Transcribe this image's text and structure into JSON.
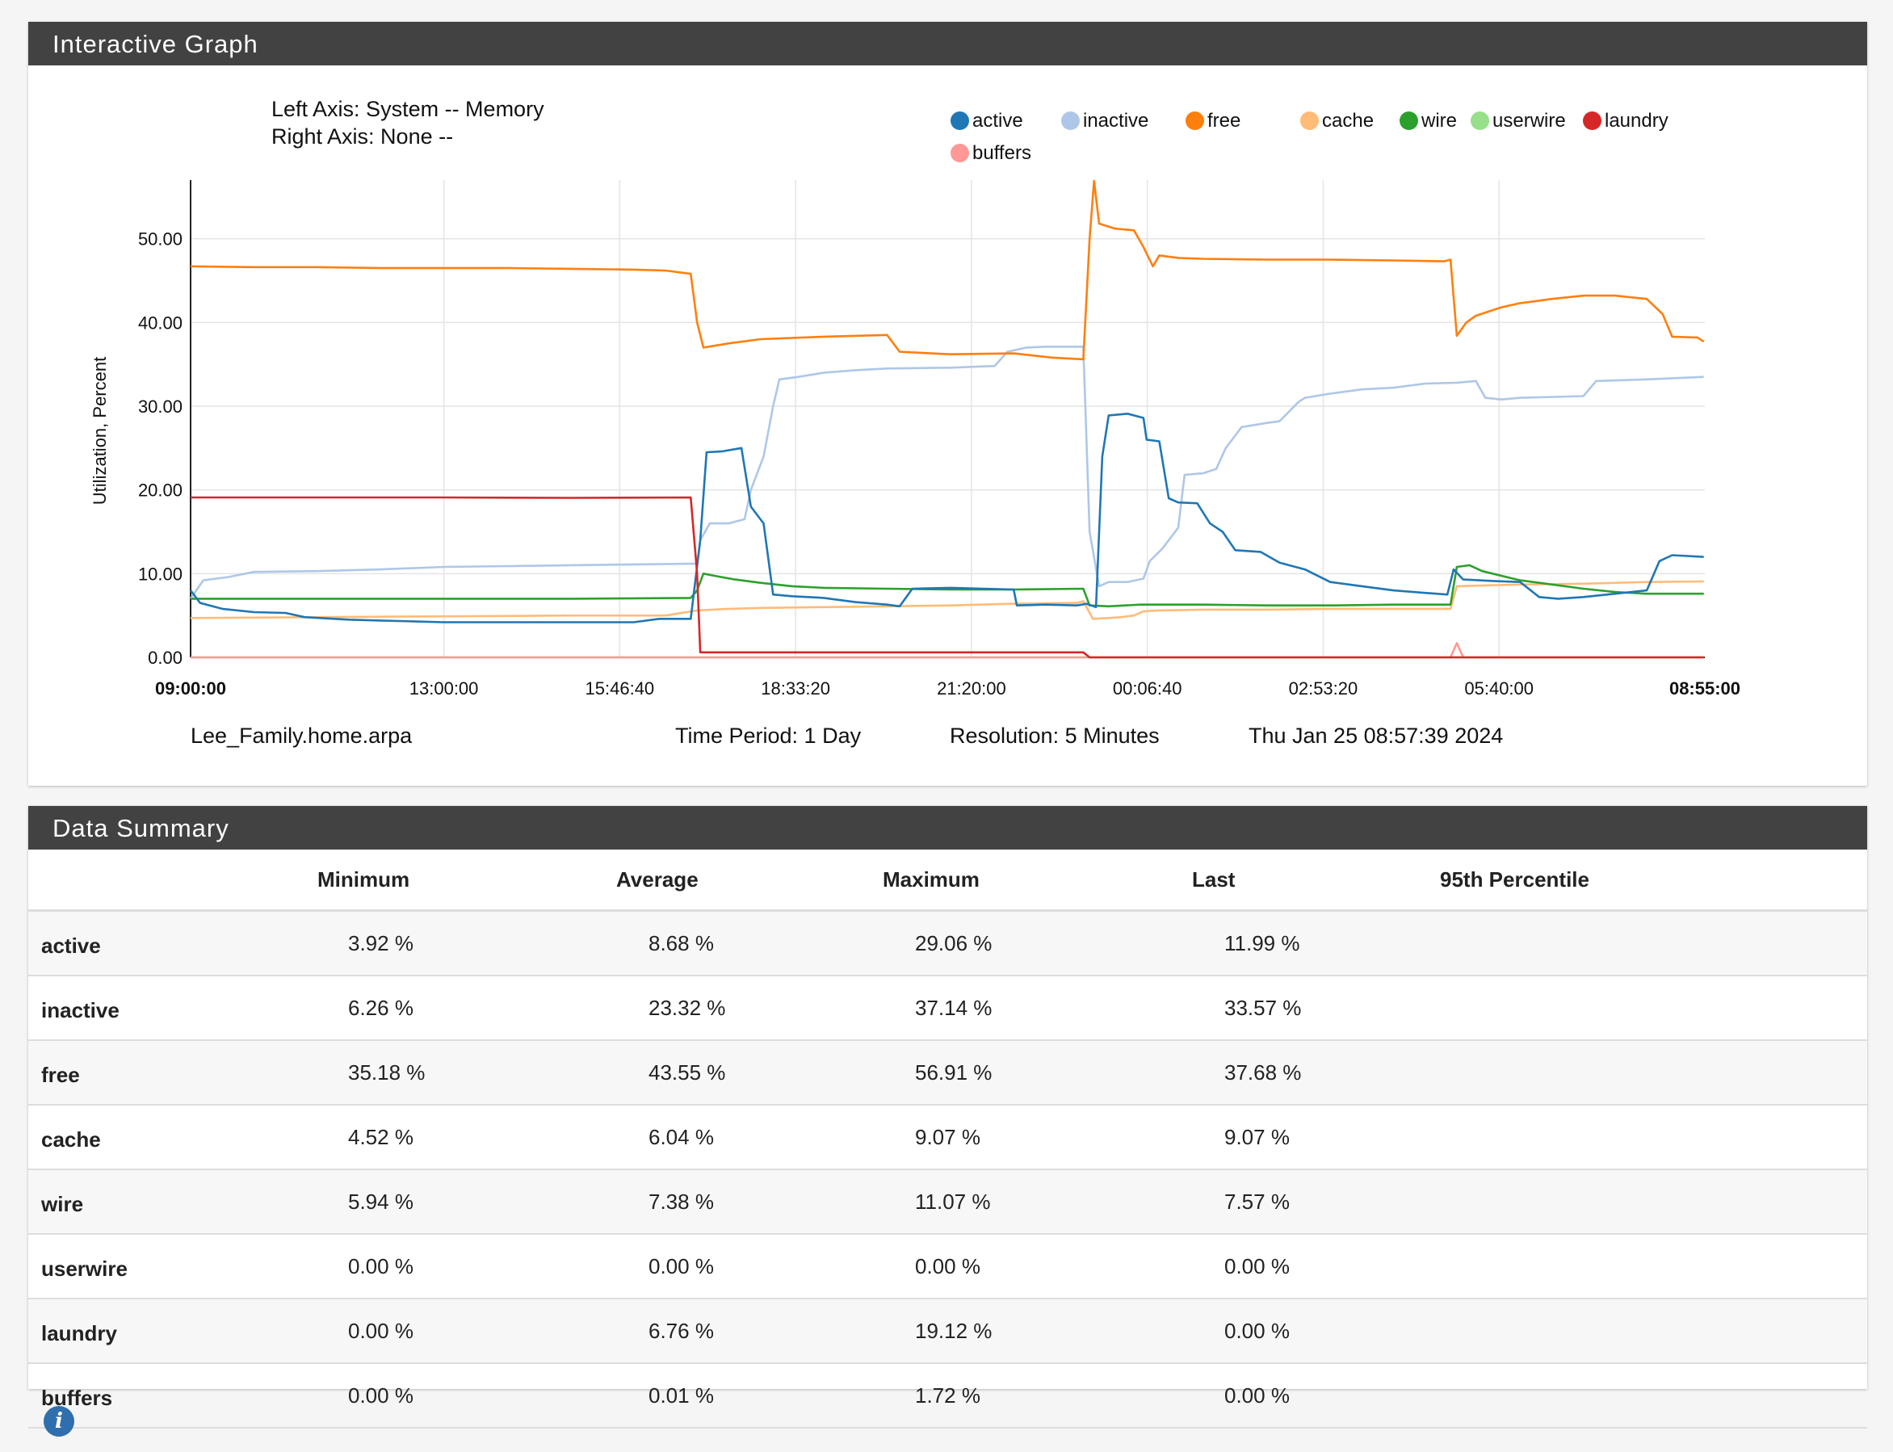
{
  "graph_panel": {
    "title": "Interactive Graph"
  },
  "summary_panel": {
    "title": "Data Summary"
  },
  "axis_info": {
    "left": "Left Axis: System -- Memory",
    "right": "Right Axis: None --"
  },
  "footer": {
    "host": "Lee_Family.home.arpa",
    "period": "Time Period: 1 Day",
    "resolution": "Resolution: 5 Minutes",
    "timestamp": "Thu Jan 25 08:57:39 2024"
  },
  "summary": {
    "headers": [
      "",
      "Minimum",
      "Average",
      "Maximum",
      "Last",
      "95th Percentile"
    ],
    "rows": [
      {
        "name": "active",
        "min": "3.92 %",
        "avg": "8.68 %",
        "max": "29.06 %",
        "last": "11.99 %",
        "p95": ""
      },
      {
        "name": "inactive",
        "min": "6.26 %",
        "avg": "23.32 %",
        "max": "37.14 %",
        "last": "33.57 %",
        "p95": ""
      },
      {
        "name": "free",
        "min": "35.18 %",
        "avg": "43.55 %",
        "max": "56.91 %",
        "last": "37.68 %",
        "p95": ""
      },
      {
        "name": "cache",
        "min": "4.52 %",
        "avg": "6.04 %",
        "max": "9.07 %",
        "last": "9.07 %",
        "p95": ""
      },
      {
        "name": "wire",
        "min": "5.94 %",
        "avg": "7.38 %",
        "max": "11.07 %",
        "last": "7.57 %",
        "p95": ""
      },
      {
        "name": "userwire",
        "min": "0.00 %",
        "avg": "0.00 %",
        "max": "0.00 %",
        "last": "0.00 %",
        "p95": ""
      },
      {
        "name": "laundry",
        "min": "0.00 %",
        "avg": "6.76 %",
        "max": "19.12 %",
        "last": "0.00 %",
        "p95": ""
      },
      {
        "name": "buffers",
        "min": "0.00 %",
        "avg": "0.01 %",
        "max": "1.72 %",
        "last": "0.00 %",
        "p95": ""
      }
    ]
  },
  "icons": {
    "info": "info-icon"
  },
  "chart_data": {
    "type": "line",
    "ylabel": "Utilization, Percent",
    "ylim": [
      0,
      57
    ],
    "grid": true,
    "legend_position": "top-right",
    "yticks": [
      "0.00",
      "10.00",
      "20.00",
      "30.00",
      "40.00",
      "50.00"
    ],
    "xticks": [
      "09:00:00",
      "13:00:00",
      "15:46:40",
      "18:33:20",
      "21:20:00",
      "00:06:40",
      "02:53:20",
      "05:40:00",
      "08:55:00"
    ],
    "x_hours": [
      0,
      4,
      6.7778,
      9.5556,
      12.3333,
      15.1111,
      17.8889,
      20.6667,
      23.9167
    ],
    "series": [
      {
        "name": "active",
        "color": "#1f77b4",
        "points": [
          [
            0,
            8
          ],
          [
            0.15,
            6.5
          ],
          [
            0.5,
            5.8
          ],
          [
            1,
            5.4
          ],
          [
            1.5,
            5.3
          ],
          [
            1.8,
            4.8
          ],
          [
            2.5,
            4.5
          ],
          [
            3,
            4.4
          ],
          [
            3.5,
            4.3
          ],
          [
            4,
            4.2
          ],
          [
            5,
            4.2
          ],
          [
            6,
            4.2
          ],
          [
            7,
            4.2
          ],
          [
            7.4,
            4.6
          ],
          [
            7.9,
            4.6
          ],
          [
            8.05,
            14
          ],
          [
            8.15,
            24.5
          ],
          [
            8.4,
            24.6
          ],
          [
            8.7,
            25
          ],
          [
            8.85,
            18
          ],
          [
            9.05,
            16
          ],
          [
            9.2,
            7.5
          ],
          [
            9.5,
            7.3
          ],
          [
            10,
            7.1
          ],
          [
            10.5,
            6.6
          ],
          [
            11,
            6.3
          ],
          [
            11.2,
            6.1
          ],
          [
            11.4,
            8.2
          ],
          [
            12,
            8.3
          ],
          [
            13,
            8.1
          ],
          [
            13.05,
            6.2
          ],
          [
            13.5,
            6.3
          ],
          [
            14,
            6.2
          ],
          [
            14.15,
            6.4
          ],
          [
            14.3,
            6
          ],
          [
            14.4,
            24
          ],
          [
            14.5,
            28.9
          ],
          [
            14.8,
            29.1
          ],
          [
            15.05,
            28.6
          ],
          [
            15.1,
            26
          ],
          [
            15.3,
            25.8
          ],
          [
            15.45,
            19
          ],
          [
            15.6,
            18.5
          ],
          [
            15.9,
            18.4
          ],
          [
            16.1,
            16
          ],
          [
            16.3,
            15
          ],
          [
            16.5,
            12.8
          ],
          [
            16.9,
            12.6
          ],
          [
            17.2,
            11.3
          ],
          [
            17.6,
            10.5
          ],
          [
            18,
            9
          ],
          [
            18.5,
            8.5
          ],
          [
            19,
            8
          ],
          [
            19.5,
            7.7
          ],
          [
            19.85,
            7.5
          ],
          [
            19.95,
            10.5
          ],
          [
            20.1,
            9.3
          ],
          [
            20.6,
            9.1
          ],
          [
            21,
            9
          ],
          [
            21.3,
            7.2
          ],
          [
            21.6,
            7
          ],
          [
            22,
            7.2
          ],
          [
            22.5,
            7.6
          ],
          [
            23,
            8
          ],
          [
            23.2,
            11.5
          ],
          [
            23.4,
            12.2
          ],
          [
            23.9,
            12
          ]
        ]
      },
      {
        "name": "inactive",
        "color": "#aec7e8",
        "points": [
          [
            0,
            7
          ],
          [
            0.2,
            9.2
          ],
          [
            0.6,
            9.6
          ],
          [
            1,
            10.2
          ],
          [
            2,
            10.3
          ],
          [
            3,
            10.5
          ],
          [
            4,
            10.8
          ],
          [
            5,
            10.9
          ],
          [
            6,
            11
          ],
          [
            7,
            11.1
          ],
          [
            8,
            11.2
          ],
          [
            8.05,
            14
          ],
          [
            8.2,
            16
          ],
          [
            8.5,
            16
          ],
          [
            8.75,
            16.5
          ],
          [
            8.85,
            20
          ],
          [
            9.05,
            24
          ],
          [
            9.2,
            30
          ],
          [
            9.3,
            33.2
          ],
          [
            9.6,
            33.5
          ],
          [
            10,
            34
          ],
          [
            10.5,
            34.3
          ],
          [
            11,
            34.5
          ],
          [
            12,
            34.6
          ],
          [
            12.7,
            34.8
          ],
          [
            12.9,
            36.5
          ],
          [
            13.2,
            37
          ],
          [
            13.5,
            37.1
          ],
          [
            14.1,
            37.1
          ],
          [
            14.2,
            15
          ],
          [
            14.35,
            8.5
          ],
          [
            14.5,
            9
          ],
          [
            14.8,
            9
          ],
          [
            15.05,
            9.4
          ],
          [
            15.15,
            11.5
          ],
          [
            15.35,
            13
          ],
          [
            15.6,
            15.5
          ],
          [
            15.7,
            21.8
          ],
          [
            16,
            22
          ],
          [
            16.2,
            22.5
          ],
          [
            16.35,
            25
          ],
          [
            16.6,
            27.5
          ],
          [
            17,
            28
          ],
          [
            17.2,
            28.2
          ],
          [
            17.5,
            30.5
          ],
          [
            17.6,
            31
          ],
          [
            18,
            31.5
          ],
          [
            18.5,
            32
          ],
          [
            19,
            32.2
          ],
          [
            19.5,
            32.7
          ],
          [
            20,
            32.8
          ],
          [
            20.3,
            33
          ],
          [
            20.45,
            31
          ],
          [
            20.7,
            30.8
          ],
          [
            21,
            31
          ],
          [
            22,
            31.2
          ],
          [
            22.2,
            33
          ],
          [
            23,
            33.2
          ],
          [
            23.9,
            33.5
          ]
        ]
      },
      {
        "name": "free",
        "color": "#ff7f0e",
        "points": [
          [
            0,
            46.7
          ],
          [
            1,
            46.6
          ],
          [
            2,
            46.6
          ],
          [
            3,
            46.5
          ],
          [
            4,
            46.5
          ],
          [
            5,
            46.5
          ],
          [
            6,
            46.4
          ],
          [
            7,
            46.3
          ],
          [
            7.5,
            46.2
          ],
          [
            7.9,
            45.8
          ],
          [
            8,
            40
          ],
          [
            8.1,
            37
          ],
          [
            8.5,
            37.5
          ],
          [
            9,
            38
          ],
          [
            10,
            38.3
          ],
          [
            11,
            38.5
          ],
          [
            11.2,
            36.5
          ],
          [
            12,
            36.2
          ],
          [
            13,
            36.3
          ],
          [
            13.6,
            35.8
          ],
          [
            14.1,
            35.6
          ],
          [
            14.2,
            50
          ],
          [
            14.27,
            56.9
          ],
          [
            14.35,
            51.8
          ],
          [
            14.6,
            51.2
          ],
          [
            14.9,
            51
          ],
          [
            15.05,
            49
          ],
          [
            15.2,
            46.7
          ],
          [
            15.3,
            48
          ],
          [
            15.6,
            47.7
          ],
          [
            16,
            47.6
          ],
          [
            17,
            47.5
          ],
          [
            18,
            47.5
          ],
          [
            19,
            47.4
          ],
          [
            19.8,
            47.3
          ],
          [
            19.9,
            47.5
          ],
          [
            20,
            38.4
          ],
          [
            20.15,
            40
          ],
          [
            20.3,
            40.8
          ],
          [
            20.7,
            41.8
          ],
          [
            21,
            42.3
          ],
          [
            21.5,
            42.8
          ],
          [
            22,
            43.2
          ],
          [
            22.5,
            43.2
          ],
          [
            23,
            42.8
          ],
          [
            23.25,
            41
          ],
          [
            23.4,
            38.3
          ],
          [
            23.8,
            38.2
          ],
          [
            23.9,
            37.7
          ]
        ]
      },
      {
        "name": "cache",
        "color": "#ffbb78",
        "points": [
          [
            0,
            4.7
          ],
          [
            2,
            4.8
          ],
          [
            4,
            4.9
          ],
          [
            6,
            5
          ],
          [
            7.5,
            5
          ],
          [
            8,
            5.6
          ],
          [
            8.5,
            5.8
          ],
          [
            9,
            5.9
          ],
          [
            10,
            6
          ],
          [
            11,
            6.1
          ],
          [
            12,
            6.2
          ],
          [
            13,
            6.4
          ],
          [
            14,
            6.5
          ],
          [
            14.1,
            6.7
          ],
          [
            14.25,
            4.6
          ],
          [
            14.5,
            4.7
          ],
          [
            14.7,
            4.8
          ],
          [
            14.9,
            5
          ],
          [
            15.05,
            5.5
          ],
          [
            15.3,
            5.6
          ],
          [
            16,
            5.7
          ],
          [
            17,
            5.7
          ],
          [
            18,
            5.8
          ],
          [
            19,
            5.8
          ],
          [
            19.9,
            5.8
          ],
          [
            20,
            8.5
          ],
          [
            20.5,
            8.6
          ],
          [
            21,
            8.7
          ],
          [
            22,
            8.8
          ],
          [
            23,
            9
          ],
          [
            23.9,
            9.07
          ]
        ]
      },
      {
        "name": "wire",
        "color": "#2ca02c",
        "points": [
          [
            0,
            7
          ],
          [
            1,
            7
          ],
          [
            2,
            7
          ],
          [
            3,
            7
          ],
          [
            4,
            7
          ],
          [
            5,
            7
          ],
          [
            6,
            7
          ],
          [
            7,
            7.05
          ],
          [
            7.9,
            7.1
          ],
          [
            8,
            8
          ],
          [
            8.1,
            10
          ],
          [
            8.3,
            9.7
          ],
          [
            8.6,
            9.3
          ],
          [
            9,
            8.9
          ],
          [
            9.5,
            8.5
          ],
          [
            10,
            8.3
          ],
          [
            11,
            8.2
          ],
          [
            12,
            8.1
          ],
          [
            13,
            8.1
          ],
          [
            14.1,
            8.2
          ],
          [
            14.2,
            6.2
          ],
          [
            14.5,
            6.1
          ],
          [
            15,
            6.3
          ],
          [
            16,
            6.3
          ],
          [
            17,
            6.2
          ],
          [
            18,
            6.2
          ],
          [
            19,
            6.3
          ],
          [
            19.9,
            6.3
          ],
          [
            20,
            10.8
          ],
          [
            20.2,
            11
          ],
          [
            20.4,
            10.3
          ],
          [
            21,
            9.2
          ],
          [
            22,
            8.2
          ],
          [
            22.5,
            7.8
          ],
          [
            23,
            7.6
          ],
          [
            23.9,
            7.6
          ]
        ]
      },
      {
        "name": "userwire",
        "color": "#98df8a",
        "points": [
          [
            0,
            0
          ],
          [
            23.9,
            0
          ]
        ]
      },
      {
        "name": "laundry",
        "color": "#d62728",
        "points": [
          [
            0,
            19.1
          ],
          [
            1,
            19.1
          ],
          [
            4,
            19.1
          ],
          [
            6,
            19.05
          ],
          [
            7.9,
            19.1
          ],
          [
            8,
            10
          ],
          [
            8.05,
            0.6
          ],
          [
            10,
            0.6
          ],
          [
            12,
            0.6
          ],
          [
            14.1,
            0.6
          ],
          [
            14.2,
            0
          ],
          [
            23.9,
            0
          ]
        ]
      },
      {
        "name": "buffers",
        "color": "#ff9896",
        "points": [
          [
            0,
            0
          ],
          [
            19.9,
            0
          ],
          [
            20,
            1.7
          ],
          [
            20.1,
            0
          ],
          [
            23.9,
            0
          ]
        ]
      }
    ]
  }
}
